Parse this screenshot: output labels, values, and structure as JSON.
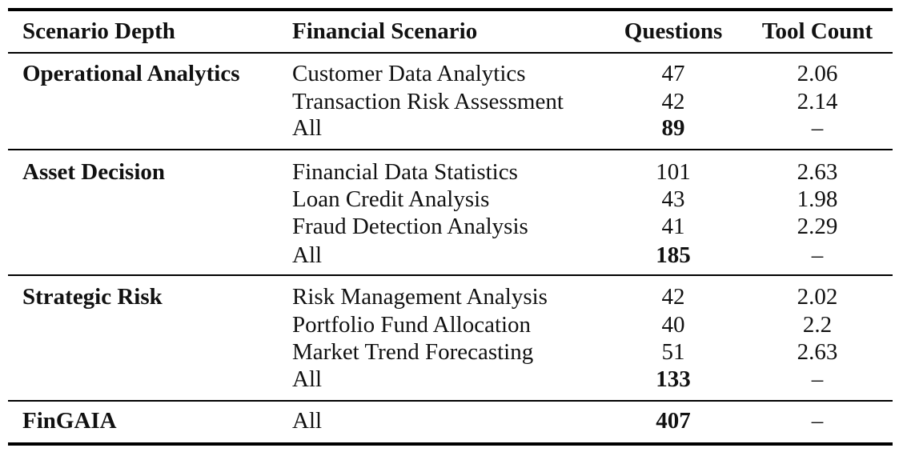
{
  "table": {
    "headers": {
      "depth": "Scenario Depth",
      "scenario": "Financial Scenario",
      "questions": "Questions",
      "tools": "Tool Count"
    },
    "groups": [
      {
        "depth": "Operational Analytics",
        "rows": [
          {
            "scenario": "Customer Data Analytics",
            "questions": "47",
            "tools": "2.06"
          },
          {
            "scenario": "Transaction Risk Assessment",
            "questions": "42",
            "tools": "2.14"
          },
          {
            "scenario": "All",
            "questions": "89",
            "tools": "–"
          }
        ]
      },
      {
        "depth": "Asset Decision",
        "rows": [
          {
            "scenario": "Financial Data Statistics",
            "questions": "101",
            "tools": "2.63"
          },
          {
            "scenario": "Loan Credit Analysis",
            "questions": "43",
            "tools": "1.98"
          },
          {
            "scenario": "Fraud Detection Analysis",
            "questions": "41",
            "tools": "2.29"
          },
          {
            "scenario": "All",
            "questions": "185",
            "tools": "–"
          }
        ]
      },
      {
        "depth": "Strategic Risk",
        "rows": [
          {
            "scenario": "Risk Management Analysis",
            "questions": "42",
            "tools": "2.02"
          },
          {
            "scenario": "Portfolio Fund Allocation",
            "questions": "40",
            "tools": "2.2"
          },
          {
            "scenario": "Market Trend Forecasting",
            "questions": "51",
            "tools": "2.63"
          },
          {
            "scenario": "All",
            "questions": "133",
            "tools": "–"
          }
        ]
      },
      {
        "depth": "FinGAIA",
        "rows": [
          {
            "scenario": "All",
            "questions": "407",
            "tools": "–"
          }
        ]
      }
    ]
  }
}
